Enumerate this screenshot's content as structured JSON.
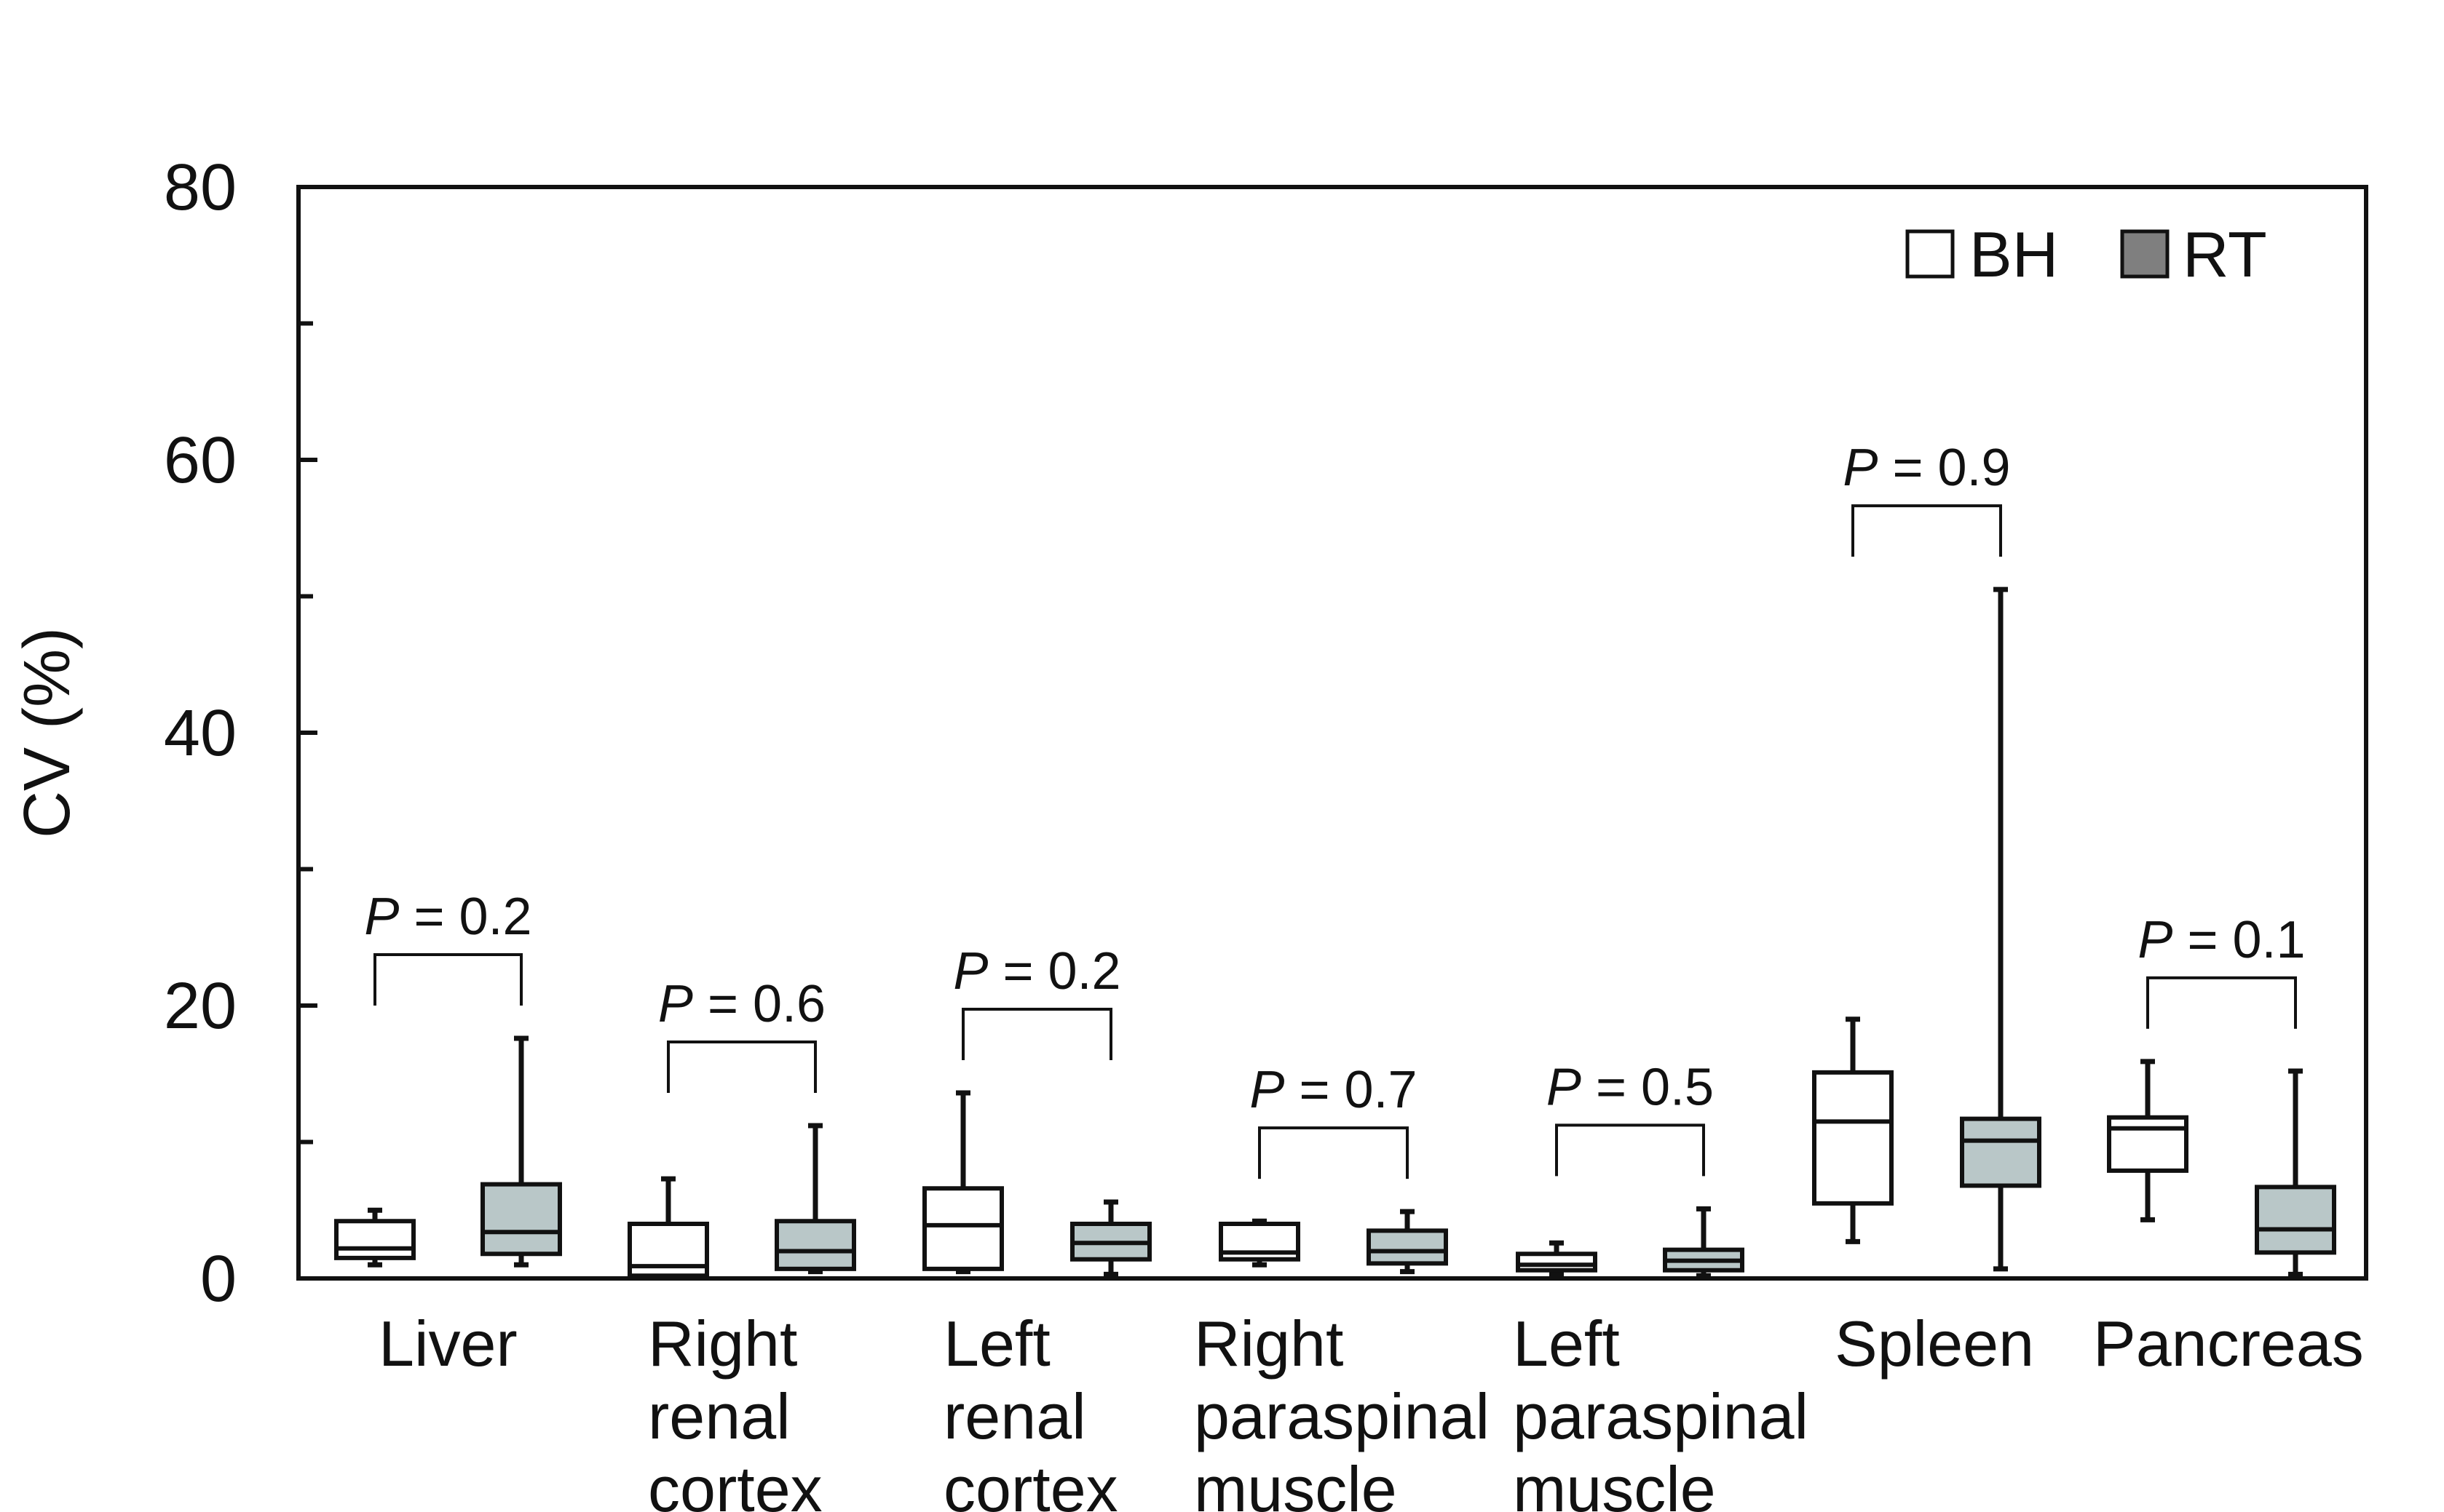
{
  "chart_data": {
    "type": "box",
    "title": "",
    "xlabel": "",
    "ylabel": "CV (%)",
    "ylim": [
      0,
      80
    ],
    "yticks": [
      "0",
      "20",
      "40",
      "60",
      "80"
    ],
    "legend": {
      "position": "top-right",
      "items": [
        {
          "label": "BH",
          "color": "#ffffff"
        },
        {
          "label": "RT",
          "color": "#7f7f7f"
        }
      ]
    },
    "colors": {
      "BH": "#ffffff",
      "RT": "#b9c7c8",
      "axis": "#111111"
    },
    "categories": [
      {
        "label": [
          "Liver"
        ],
        "p_prefix": "P",
        "p_rest": " = 0.2",
        "BH": {
          "min": 1.0,
          "q1": 1.5,
          "median": 2.2,
          "q3": 4.2,
          "max": 5.0
        },
        "RT": {
          "min": 1.0,
          "q1": 1.8,
          "median": 3.4,
          "q3": 6.9,
          "max": 17.6
        }
      },
      {
        "label": [
          "Right",
          "renal",
          "cortex"
        ],
        "p_prefix": "P",
        "p_rest": " = 0.6",
        "BH": {
          "min": 0.2,
          "q1": 0.2,
          "median": 0.9,
          "q3": 4.0,
          "max": 7.3
        },
        "RT": {
          "min": 0.5,
          "q1": 0.7,
          "median": 2.0,
          "q3": 4.2,
          "max": 11.2
        }
      },
      {
        "label": [
          "Left",
          "renal",
          "cortex"
        ],
        "p_prefix": "P",
        "p_rest": " = 0.2",
        "BH": {
          "min": 0.5,
          "q1": 0.7,
          "median": 3.9,
          "q3": 6.6,
          "max": 13.6
        },
        "RT": {
          "min": 0.3,
          "q1": 1.4,
          "median": 2.6,
          "q3": 4.0,
          "max": 5.6
        }
      },
      {
        "label": [
          "Right",
          "paraspinal",
          "muscle"
        ],
        "p_prefix": "P",
        "p_rest": " = 0.7",
        "BH": {
          "min": 1.0,
          "q1": 1.4,
          "median": 1.9,
          "q3": 4.0,
          "max": 4.2
        },
        "RT": {
          "min": 0.5,
          "q1": 1.1,
          "median": 2.0,
          "q3": 3.5,
          "max": 4.9
        }
      },
      {
        "label": [
          "Left",
          "paraspinal",
          "muscle"
        ],
        "p_prefix": "P",
        "p_rest": " = 0.5",
        "BH": {
          "min": 0.3,
          "q1": 0.6,
          "median": 1.0,
          "q3": 1.8,
          "max": 2.6
        },
        "RT": {
          "min": 0.2,
          "q1": 0.6,
          "median": 1.3,
          "q3": 2.1,
          "max": 5.1
        }
      },
      {
        "label": [
          "Spleen"
        ],
        "p_prefix": "P",
        "p_rest": " = 0.9",
        "BH": {
          "min": 2.7,
          "q1": 5.5,
          "median": 11.5,
          "q3": 15.1,
          "max": 19.0
        },
        "RT": {
          "min": 0.7,
          "q1": 6.8,
          "median": 10.1,
          "q3": 11.7,
          "max": 50.5
        }
      },
      {
        "label": [
          "Pancreas"
        ],
        "p_prefix": "P",
        "p_rest": " = 0.1",
        "BH": {
          "min": 4.3,
          "q1": 7.9,
          "median": 11.0,
          "q3": 11.8,
          "max": 15.9
        },
        "RT": {
          "min": 0.3,
          "q1": 1.9,
          "median": 3.6,
          "q3": 6.7,
          "max": 15.2
        }
      }
    ]
  }
}
